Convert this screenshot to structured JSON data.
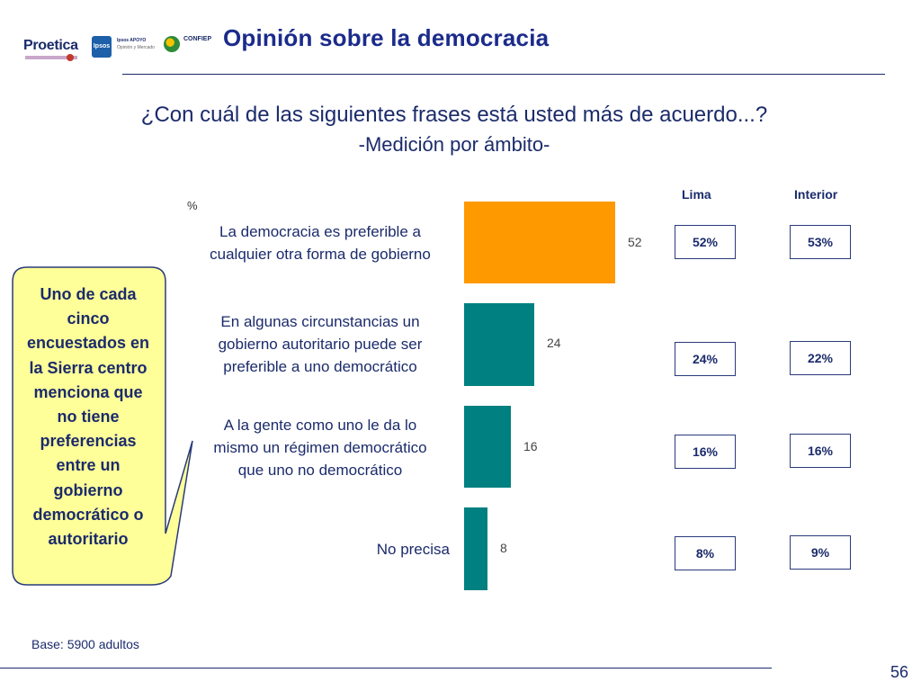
{
  "logos": {
    "proetica": "Proetica",
    "ipsos": "Ipsos",
    "apoyo": "Ipsos APOYO",
    "apoyo_sub": "Opinión y Mercado",
    "confiep": "CONFIEP"
  },
  "title": "Opinión sobre la democracia",
  "question": "¿Con cuál de las siguientes frases está usted más de acuerdo...?",
  "subquestion": "-Medición por ámbito-",
  "callout": "Uno de cada cinco encuestados en la Sierra centro menciona que no tiene preferencias entre un gobierno democrático o autoritario",
  "footer": {
    "base": "Base: 5900 adultos",
    "page": "56"
  },
  "chart_data": {
    "type": "bar",
    "orientation": "vertical-bars-in-rows",
    "unit_label": "%",
    "categories": [
      "La democracia es preferible a cualquier otra forma de gobierno",
      "En algunas circunstancias un gobierno autoritario puede ser preferible a uno democrático",
      "A la gente como uno le da lo mismo un régimen democrático que uno no democrático",
      "No precisa"
    ],
    "category_lines": [
      [
        "La democracia es preferible a",
        "cualquier otra forma de gobierno"
      ],
      [
        "En algunas circunstancias un",
        "gobierno autoritario puede ser",
        "preferible a uno democrático"
      ],
      [
        "A la gente como uno le da lo",
        "mismo un régimen democrático",
        "que uno no democrático"
      ],
      [
        "No precisa"
      ]
    ],
    "values": [
      52,
      24,
      16,
      8
    ],
    "colors": [
      "#FF9900",
      "#008080",
      "#008080",
      "#008080"
    ],
    "value_max": 52,
    "breakdown": {
      "headers": [
        "Lima",
        "Interior"
      ],
      "lima": [
        "52%",
        "24%",
        "16%",
        "8%"
      ],
      "interior": [
        "53%",
        "22%",
        "16%",
        "9%"
      ]
    }
  }
}
